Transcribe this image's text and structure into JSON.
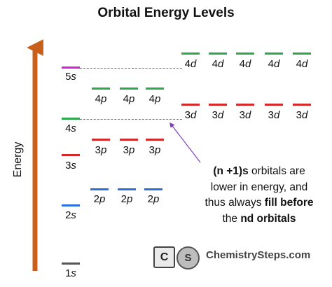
{
  "title": "Orbital Energy Levels",
  "axis_label": "Energy",
  "colors": {
    "s1": "#555555",
    "n2": "#2a6fdb",
    "n3": "#d62828",
    "n4": "#2ca84a",
    "n5": "#d61fd6",
    "arrow": "#c8601c",
    "pointer": "#7b3fb8"
  },
  "levels": {
    "s1": {
      "n": "1",
      "l": "s"
    },
    "s2": {
      "n": "2",
      "l": "s"
    },
    "p2": [
      {
        "n": "2",
        "l": "p"
      },
      {
        "n": "2",
        "l": "p"
      },
      {
        "n": "2",
        "l": "p"
      }
    ],
    "s3": {
      "n": "3",
      "l": "s"
    },
    "p3": [
      {
        "n": "3",
        "l": "p"
      },
      {
        "n": "3",
        "l": "p"
      },
      {
        "n": "3",
        "l": "p"
      }
    ],
    "d3": [
      {
        "n": "3",
        "l": "d"
      },
      {
        "n": "3",
        "l": "d"
      },
      {
        "n": "3",
        "l": "d"
      },
      {
        "n": "3",
        "l": "d"
      },
      {
        "n": "3",
        "l": "d"
      }
    ],
    "s4": {
      "n": "4",
      "l": "s"
    },
    "p4": [
      {
        "n": "4",
        "l": "p"
      },
      {
        "n": "4",
        "l": "p"
      },
      {
        "n": "4",
        "l": "p"
      }
    ],
    "d4": [
      {
        "n": "4",
        "l": "d"
      },
      {
        "n": "4",
        "l": "d"
      },
      {
        "n": "4",
        "l": "d"
      },
      {
        "n": "4",
        "l": "d"
      },
      {
        "n": "4",
        "l": "d"
      }
    ],
    "s5": {
      "n": "5",
      "l": "s"
    }
  },
  "note": {
    "line1_bold": "(n +1)s",
    "line1_rest": " orbitals are",
    "line2": "lower in energy, and",
    "line3_pre": "thus always ",
    "line3_bold": "fill before",
    "line4_pre": "the ",
    "line4_bold": "nd orbitals"
  },
  "logo": {
    "c": "C",
    "s": "S",
    "brand": "ChemistrySteps.com"
  }
}
